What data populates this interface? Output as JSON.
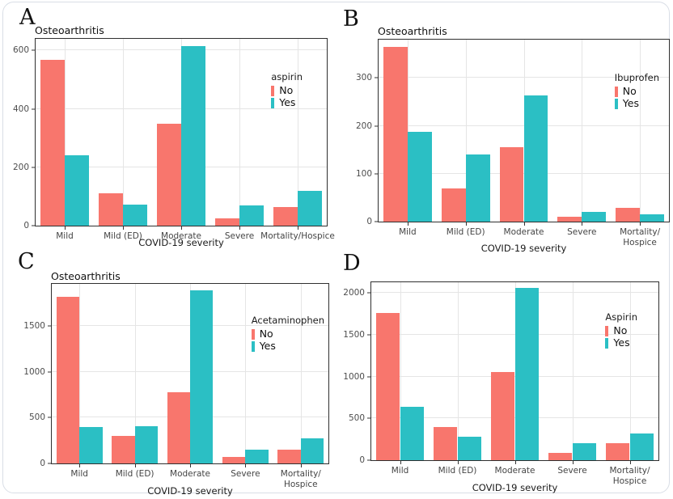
{
  "figure": {
    "background": "#ffffff",
    "card_border_color": "#d9dee6"
  },
  "palette": {
    "no": "#f8766d",
    "yes": "#2bbfc4",
    "grid": "#e5e5e5",
    "panel_border": "#2f2f2f"
  },
  "chart_data": [
    {
      "type": "bar",
      "panel_label": "A",
      "title": "Osteoarthritis",
      "legend_title": "aspirin",
      "legend_position": "inside-right",
      "xlabel": "COVID-19 severity",
      "ylabel": "",
      "categories": [
        "Mild",
        "Mild (ED)",
        "Moderate",
        "Severe",
        "Mortality/Hospice"
      ],
      "series": [
        {
          "name": "No",
          "color": "#f8766d",
          "values": [
            568,
            110,
            350,
            25,
            63
          ]
        },
        {
          "name": "Yes",
          "color": "#2bbfc4",
          "values": [
            240,
            72,
            615,
            70,
            120
          ]
        }
      ],
      "yticks": [
        0,
        200,
        400,
        600
      ],
      "ylim": [
        0,
        640
      ],
      "grid": "major-y and x category centers"
    },
    {
      "type": "bar",
      "panel_label": "B",
      "title": "Osteoarthritis",
      "legend_title": "Ibuprofen",
      "legend_position": "inside-right",
      "xlabel": "COVID-19 severity",
      "ylabel": "",
      "categories": [
        "Mild",
        "Mild (ED)",
        "Moderate",
        "Severe",
        "Mortality/\nHospice"
      ],
      "series": [
        {
          "name": "No",
          "color": "#f8766d",
          "values": [
            365,
            70,
            155,
            11,
            28
          ]
        },
        {
          "name": "Yes",
          "color": "#2bbfc4",
          "values": [
            188,
            140,
            263,
            21,
            15
          ]
        }
      ],
      "yticks": [
        0,
        100,
        200,
        300
      ],
      "ylim": [
        0,
        380
      ],
      "grid": "major-y and x category centers"
    },
    {
      "type": "bar",
      "panel_label": "C",
      "title": "Osteoarthritis",
      "legend_title": "Acetaminophen",
      "legend_position": "inside-right",
      "xlabel": "COVID-19 severity",
      "ylabel": "",
      "categories": [
        "Mild",
        "Mild (ED)",
        "Moderate",
        "Severe",
        "Mortality/\nHospice"
      ],
      "series": [
        {
          "name": "No",
          "color": "#f8766d",
          "values": [
            1820,
            300,
            780,
            70,
            150
          ]
        },
        {
          "name": "Yes",
          "color": "#2bbfc4",
          "values": [
            400,
            410,
            1890,
            150,
            270
          ]
        }
      ],
      "yticks": [
        0,
        500,
        1000,
        1500
      ],
      "ylim": [
        0,
        1960
      ],
      "grid": "major-y and x category centers"
    },
    {
      "type": "bar",
      "panel_label": "D",
      "title": "",
      "legend_title": "Aspirin",
      "legend_position": "inside-right",
      "xlabel": "COVID-19 severity",
      "ylabel": "",
      "categories": [
        "Mild",
        "Mild (ED)",
        "Moderate",
        "Severe",
        "Mortality/\nHospice"
      ],
      "series": [
        {
          "name": "No",
          "color": "#f8766d",
          "values": [
            1760,
            400,
            1060,
            90,
            200
          ]
        },
        {
          "name": "Yes",
          "color": "#2bbfc4",
          "values": [
            640,
            280,
            2060,
            200,
            320
          ]
        }
      ],
      "yticks": [
        0,
        500,
        1000,
        1500,
        2000
      ],
      "ylim": [
        0,
        2130
      ],
      "grid": "major-y and x category centers"
    }
  ]
}
